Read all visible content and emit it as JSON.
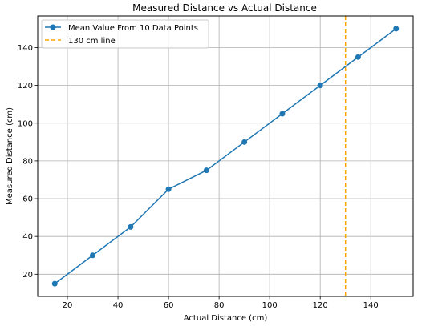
{
  "chart_data": {
    "type": "line",
    "title": "Measured Distance vs Actual Distance",
    "xlabel": "Actual Distance (cm)",
    "ylabel": "Measured Distance (cm)",
    "xlim": [
      8.25,
      156.75
    ],
    "ylim": [
      8.25,
      156.75
    ],
    "xticks": [
      20,
      40,
      60,
      80,
      100,
      120,
      140
    ],
    "yticks": [
      20,
      40,
      60,
      80,
      100,
      120,
      140
    ],
    "grid": true,
    "legend_position": "upper-left",
    "series": [
      {
        "name": "Mean Value From 10 Data Points",
        "color": "#1f77b4",
        "marker": "circle",
        "x": [
          15,
          30,
          45,
          60,
          75,
          90,
          105,
          120,
          135,
          150
        ],
        "y": [
          15,
          30,
          45,
          65,
          75,
          90,
          105,
          120,
          135,
          150
        ]
      }
    ],
    "vline": {
      "name": "130 cm line",
      "x": 130,
      "color": "#ffa500",
      "style": "dashed"
    }
  }
}
